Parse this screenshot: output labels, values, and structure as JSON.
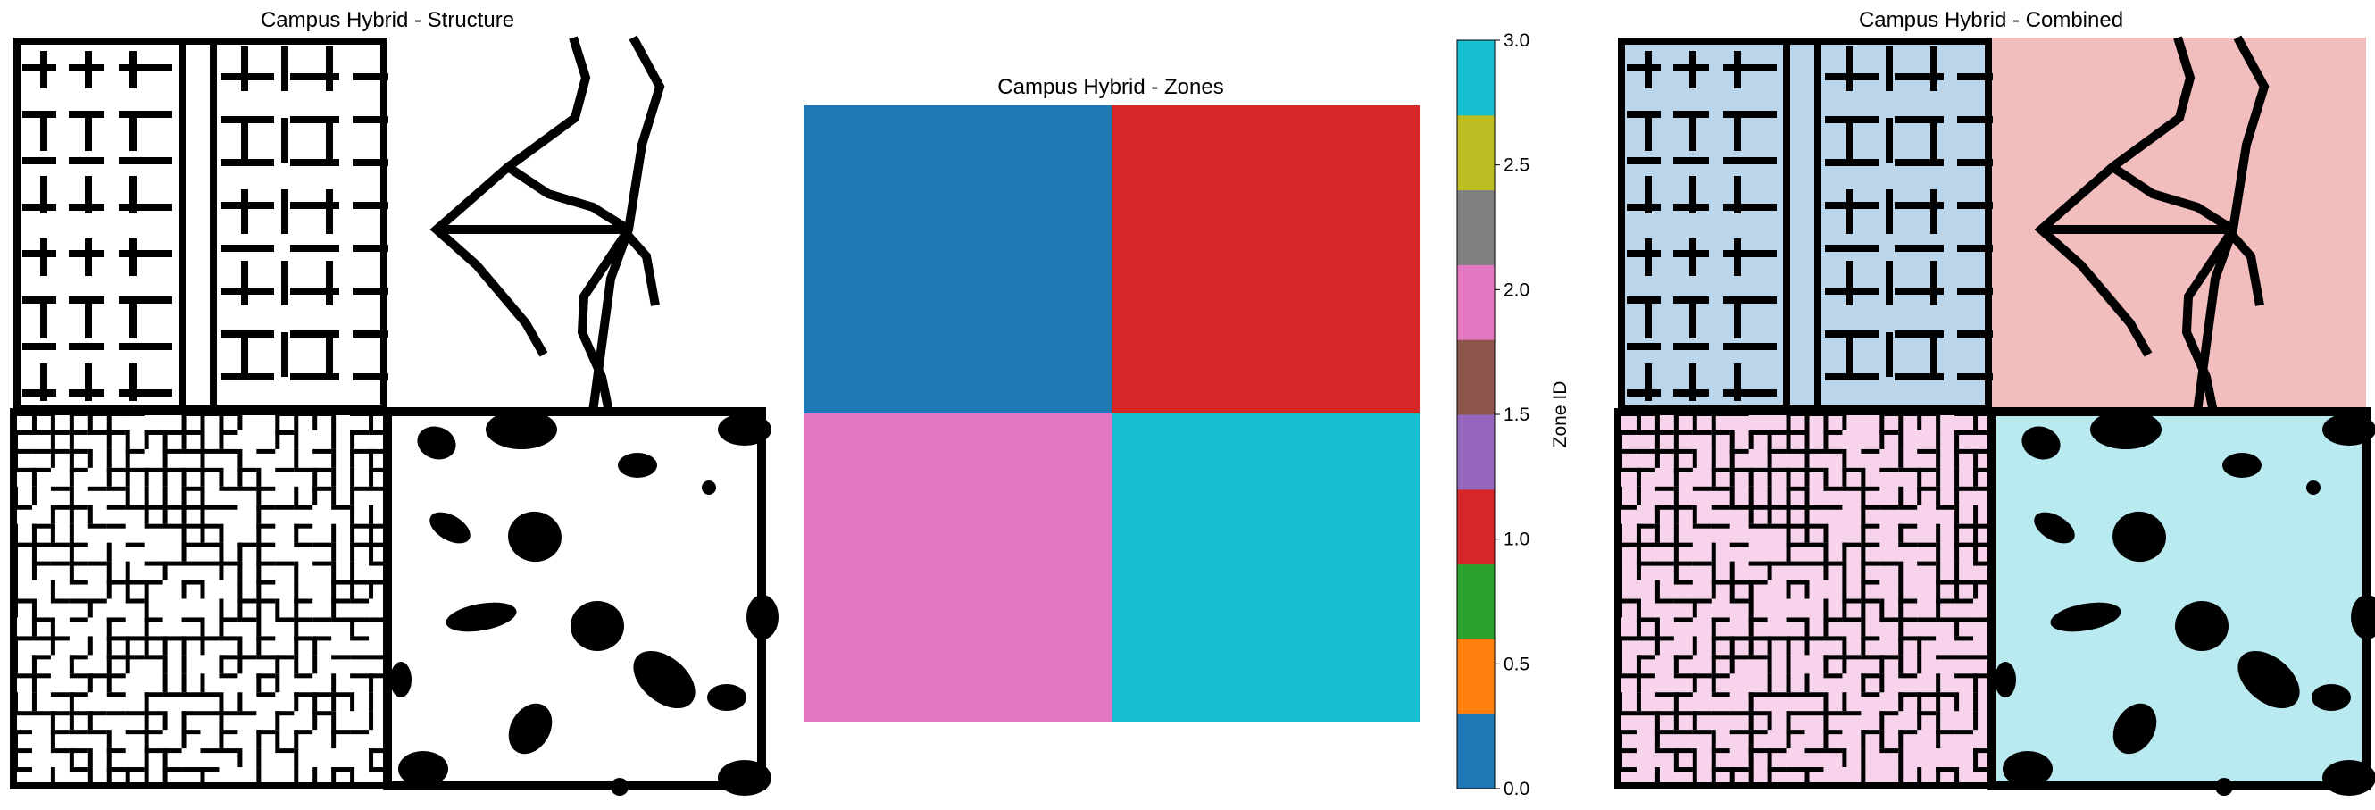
{
  "chart_data": [
    {
      "type": "heatmap",
      "title": "Campus Hybrid - Structure",
      "grid": "2x2 occupancy grid (black = obstacle, white = free)",
      "quadrants": [
        {
          "position": "top-left",
          "pattern": "rooms"
        },
        {
          "position": "top-right",
          "pattern": "roads"
        },
        {
          "position": "bottom-left",
          "pattern": "maze"
        },
        {
          "position": "bottom-right",
          "pattern": "blobs"
        }
      ]
    },
    {
      "type": "heatmap",
      "title": "Campus Hybrid - Zones",
      "zones": [
        [
          0,
          1
        ],
        [
          2,
          3
        ]
      ],
      "colorbar": {
        "label": "Zone ID",
        "range": [
          0.0,
          3.0
        ],
        "ticks": [
          "0.0",
          "0.5",
          "1.0",
          "1.5",
          "2.0",
          "2.5",
          "3.0"
        ],
        "colors": [
          "#1f77b4",
          "#ff7f0e",
          "#2ca02c",
          "#d62728",
          "#9467bd",
          "#8c564b",
          "#e377c2",
          "#7f7f7f",
          "#bcbd22",
          "#17becf"
        ]
      },
      "zone_colors": {
        "0": "#1f77b4",
        "1": "#d62728",
        "2": "#e377c2",
        "3": "#17becf"
      }
    },
    {
      "type": "heatmap",
      "title": "Campus Hybrid - Combined",
      "tints": {
        "0": "#bbd6eb",
        "1": "#f2bdbd",
        "2": "#f7d4ec",
        "3": "#b9eaf0"
      }
    }
  ]
}
